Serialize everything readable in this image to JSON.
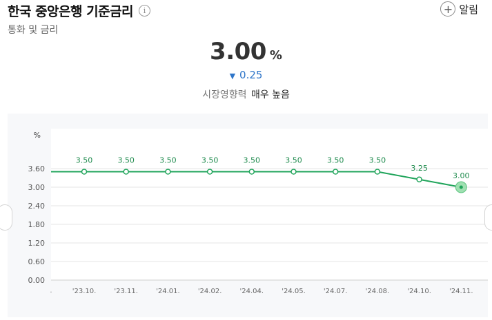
{
  "header": {
    "title": "한국 중앙은행 기준금리",
    "subtitle": "통화 및 금리",
    "info_icon": "i",
    "alarm_icon": "+",
    "alarm_label": "알림"
  },
  "summary": {
    "value": "3.00",
    "unit": "%",
    "change_direction": "down",
    "change_value": "0.25",
    "impact_label": "시장영향력",
    "impact_level": "매우 높음"
  },
  "colors": {
    "line": "#1fa45a",
    "change": "#2f76c9",
    "chart_bg": "#f7f8fa"
  },
  "chart_data": {
    "type": "line",
    "unit_label": "%",
    "categories": [
      "'23.10.",
      "'23.11.",
      "'24.01.",
      "'24.02.",
      "'24.04.",
      "'24.05.",
      "'24.07.",
      "'24.08.",
      "'24.10.",
      "'24.11."
    ],
    "values": [
      3.5,
      3.5,
      3.5,
      3.5,
      3.5,
      3.5,
      3.5,
      3.5,
      3.25,
      3.0
    ],
    "data_labels": [
      "3.50",
      "3.50",
      "3.50",
      "3.50",
      "3.50",
      "3.50",
      "3.50",
      "3.50",
      "3.25",
      "3.00"
    ],
    "y_ticks": [
      "0.00",
      "0.60",
      "1.20",
      "1.80",
      "2.40",
      "3.00",
      "3.60"
    ],
    "ylim": [
      0,
      3.6
    ],
    "grid": true,
    "highlight_last": true
  }
}
